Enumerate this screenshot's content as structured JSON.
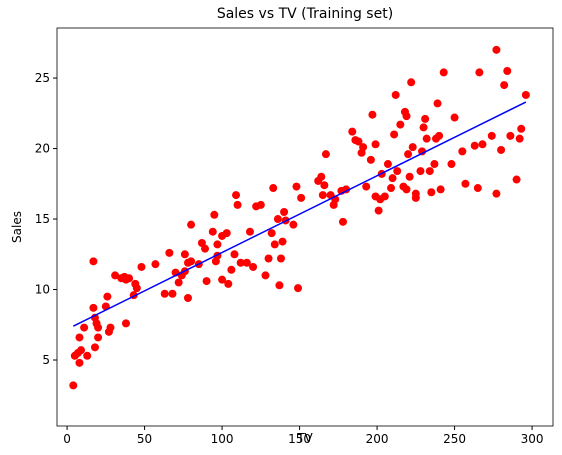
{
  "chart_data": {
    "type": "scatter",
    "title": "Sales vs TV (Training set)",
    "x_label": "TV",
    "y_label": "Sales",
    "xlim": [
      -6.5,
      313.5
    ],
    "ylim": [
      0.32,
      28.55
    ],
    "xticks": [
      0,
      50,
      100,
      150,
      200,
      250,
      300
    ],
    "yticks": [
      5,
      10,
      15,
      20,
      25
    ],
    "series": [
      {
        "color": "#ff0000",
        "x": [
          4,
          5,
          7,
          8,
          8,
          9,
          11,
          13,
          17,
          17,
          18,
          18,
          19,
          20,
          20,
          25,
          26,
          27,
          28,
          31,
          35,
          37,
          38,
          38,
          40,
          43,
          44,
          45,
          48,
          57,
          63,
          66,
          68,
          70,
          72,
          74,
          76,
          76,
          78,
          78,
          80,
          80,
          85,
          87,
          89,
          90,
          94,
          95,
          96,
          97,
          97,
          100,
          100,
          103,
          104,
          106,
          108,
          109,
          110,
          112,
          116,
          118,
          120,
          122,
          125,
          128,
          130,
          132,
          133,
          134,
          136,
          137,
          138,
          139,
          140,
          141,
          146,
          148,
          149,
          151,
          162,
          164,
          165,
          166,
          167,
          170,
          172,
          173,
          177,
          178,
          180,
          184,
          186,
          188,
          190,
          191,
          193,
          196,
          197,
          199,
          199,
          201,
          202,
          203,
          205,
          207,
          209,
          210,
          211,
          212,
          213,
          215,
          217,
          218,
          219,
          219,
          220,
          221,
          222,
          223,
          225,
          225,
          228,
          229,
          230,
          231,
          232,
          234,
          235,
          237,
          238,
          239,
          240,
          241,
          243,
          248,
          250,
          255,
          257,
          263,
          265,
          266,
          268,
          274,
          277,
          277,
          280,
          282,
          284,
          286,
          290,
          292,
          293,
          296
        ],
        "values": [
          3.2,
          5.3,
          5.5,
          6.6,
          4.8,
          5.7,
          7.3,
          5.3,
          8.7,
          12,
          5.9,
          8,
          7.6,
          7.3,
          6.6,
          8.8,
          9.5,
          7,
          7.3,
          11,
          10.8,
          10.9,
          10.7,
          7.6,
          10.8,
          9.6,
          10.4,
          10.1,
          11.6,
          11.8,
          9.7,
          12.6,
          9.7,
          11.2,
          10.5,
          11,
          11.3,
          12.5,
          9.4,
          11.9,
          14.6,
          12,
          11.8,
          13.3,
          12.9,
          10.6,
          14.1,
          15.3,
          12,
          12.4,
          13.2,
          10.7,
          13.8,
          14,
          10.4,
          11.4,
          12.5,
          16.7,
          16,
          11.9,
          11.9,
          14.1,
          11.6,
          15.9,
          16,
          11,
          12.2,
          14,
          17.2,
          13.2,
          15,
          10.3,
          12.2,
          13.4,
          15.5,
          14.9,
          14.6,
          17.3,
          10.1,
          16.5,
          17.7,
          18,
          16.7,
          17.4,
          19.6,
          16.7,
          16,
          16.4,
          17,
          14.8,
          17.1,
          21.2,
          20.6,
          20.5,
          19.7,
          20.1,
          17.3,
          19.2,
          22.4,
          16.6,
          20.3,
          15.6,
          16.4,
          18.2,
          16.6,
          18.9,
          17.2,
          17.9,
          21,
          23.8,
          18.4,
          21.7,
          17.3,
          22.6,
          22.3,
          17.1,
          19.6,
          18,
          24.7,
          20.1,
          16.8,
          16.5,
          18.4,
          19.8,
          21.5,
          22.1,
          20.7,
          18.4,
          16.9,
          18.9,
          20.7,
          23.2,
          20.9,
          17.1,
          25.4,
          18.9,
          22.2,
          19.8,
          17.5,
          20.2,
          17.2,
          25.4,
          20.3,
          20.9,
          27,
          16.8,
          19.9,
          24.5,
          25.5,
          20.9,
          17.8,
          20.7,
          21.4,
          23.8
        ]
      },
      {
        "type": "line",
        "color": "#0000ff",
        "x": [
          4,
          296
        ],
        "values": [
          7.4,
          23.3
        ]
      }
    ]
  }
}
